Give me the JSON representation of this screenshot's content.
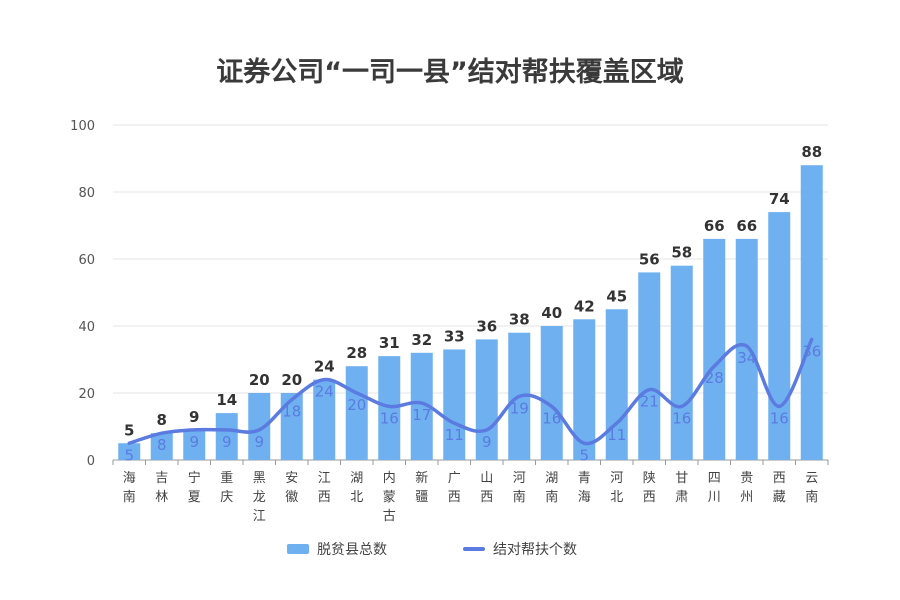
{
  "chart_data": {
    "type": "bar",
    "title": "证券公司“一司一县”结对帮扶覆盖区域",
    "categories": [
      "海南",
      "吉林",
      "宁夏",
      "重庆",
      "黑龙江",
      "安徽",
      "江西",
      "湖北",
      "内蒙古",
      "新疆",
      "广西",
      "山西",
      "河南",
      "湖南",
      "青海",
      "河北",
      "陕西",
      "甘肃",
      "四川",
      "贵州",
      "西藏",
      "云南"
    ],
    "category_lines": [
      [
        "海",
        "南"
      ],
      [
        "吉",
        "林"
      ],
      [
        "宁",
        "夏"
      ],
      [
        "重",
        "庆"
      ],
      [
        "黑",
        "龙",
        "江"
      ],
      [
        "安",
        "徽"
      ],
      [
        "江",
        "西"
      ],
      [
        "湖",
        "北"
      ],
      [
        "内",
        "蒙",
        "古"
      ],
      [
        "新",
        "疆"
      ],
      [
        "广",
        "西"
      ],
      [
        "山",
        "西"
      ],
      [
        "河",
        "南"
      ],
      [
        "湖",
        "南"
      ],
      [
        "青",
        "海"
      ],
      [
        "河",
        "北"
      ],
      [
        "陕",
        "西"
      ],
      [
        "甘",
        "肃"
      ],
      [
        "四",
        "川"
      ],
      [
        "贵",
        "州"
      ],
      [
        "西",
        "藏"
      ],
      [
        "云",
        "南"
      ]
    ],
    "series": [
      {
        "name": "脱贫县总数",
        "type": "bar",
        "color": "#6fb1f0",
        "values": [
          5,
          8,
          9,
          14,
          20,
          20,
          24,
          28,
          31,
          32,
          33,
          36,
          38,
          40,
          42,
          45,
          56,
          58,
          66,
          66,
          74,
          88
        ]
      },
      {
        "name": "结对帮扶个数",
        "type": "line",
        "color": "#5b7be0",
        "values": [
          5,
          8,
          9,
          9,
          9,
          18,
          24,
          20,
          16,
          17,
          11,
          9,
          19,
          16,
          5,
          11,
          21,
          16,
          28,
          34,
          16,
          36
        ]
      }
    ],
    "bar_labels": [
      "5",
      "8",
      "9",
      "14",
      "20",
      "20",
      "24",
      "28",
      "31",
      "32",
      "33",
      "36",
      "38",
      "40",
      "42",
      "45",
      "56",
      "58",
      "66",
      "66",
      "74",
      "88"
    ],
    "line_labels": [
      "5",
      "8",
      "9",
      "9",
      "9",
      "18",
      "24",
      "20",
      "16",
      "17",
      "11",
      "9",
      "19",
      "16",
      "5",
      "11",
      "21",
      "16",
      "28",
      "34",
      "16",
      "36"
    ],
    "ylim": [
      0,
      100
    ],
    "yticks": [
      "0",
      "20",
      "40",
      "60",
      "80",
      "100"
    ],
    "grid": true,
    "legend_position": "bottom"
  }
}
